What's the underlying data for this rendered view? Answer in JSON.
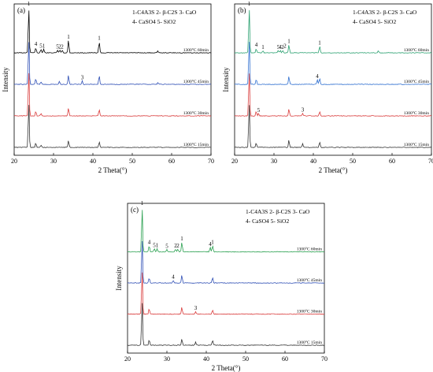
{
  "common": {
    "ylabel": "Intensity",
    "xlabel": "2 Theta(°)",
    "xlim": [
      20,
      70
    ],
    "xticks": [
      20,
      30,
      40,
      50,
      60,
      70
    ],
    "legend_lines": [
      [
        "1-C4A3S",
        "2- β-C2S",
        "3- CaO"
      ],
      [
        "4- CaSO4",
        "5- SiO2"
      ]
    ]
  },
  "chart_data": [
    {
      "type": "line",
      "panel_label": "(a)",
      "xlabel": "2 Theta(°)",
      "ylabel": "Intensity",
      "xlim": [
        20,
        70
      ],
      "series": [
        {
          "name": "1300°C 60min",
          "color": "#000000",
          "peaks": [
            [
              23.7,
              1.0
            ],
            [
              25.5,
              0.12
            ],
            [
              26.8,
              0.08
            ],
            [
              27.5,
              0.08
            ],
            [
              31.0,
              0.06
            ],
            [
              31.6,
              0.06
            ],
            [
              32.2,
              0.06
            ],
            [
              33.8,
              0.28
            ],
            [
              41.6,
              0.25
            ],
            [
              56.5,
              0.05
            ]
          ]
        },
        {
          "name": "1300°C 45min",
          "color": "#2f4fb5",
          "peaks": [
            [
              23.7,
              1.0
            ],
            [
              25.5,
              0.12
            ],
            [
              26.8,
              0.06
            ],
            [
              31.5,
              0.06
            ],
            [
              33.8,
              0.2
            ],
            [
              37.3,
              0.08
            ],
            [
              41.6,
              0.2
            ],
            [
              56.5,
              0.04
            ]
          ]
        },
        {
          "name": "1300°C 30min",
          "color": "#d93a3a",
          "peaks": [
            [
              23.7,
              1.0
            ],
            [
              25.5,
              0.1
            ],
            [
              26.8,
              0.05
            ],
            [
              33.8,
              0.18
            ],
            [
              41.6,
              0.14
            ]
          ]
        },
        {
          "name": "1300°C 15min",
          "color": "#333333",
          "peaks": [
            [
              23.7,
              1.0
            ],
            [
              25.5,
              0.1
            ],
            [
              26.8,
              0.05
            ],
            [
              33.8,
              0.16
            ],
            [
              41.6,
              0.12
            ]
          ]
        }
      ],
      "annotations": [
        {
          "text": "1",
          "x": 23.7,
          "trace": 0
        },
        {
          "text": "4",
          "x": 25.5,
          "trace": 0
        },
        {
          "text": "5",
          "x": 26.8,
          "trace": 0
        },
        {
          "text": "1",
          "x": 27.5,
          "trace": 0
        },
        {
          "text": "5",
          "x": 31.0,
          "trace": 0
        },
        {
          "text": "2",
          "x": 31.6,
          "trace": 0
        },
        {
          "text": "2",
          "x": 32.2,
          "trace": 0
        },
        {
          "text": "1",
          "x": 33.8,
          "trace": 0
        },
        {
          "text": "1",
          "x": 41.6,
          "trace": 0
        },
        {
          "text": "3",
          "x": 37.3,
          "trace": 1
        }
      ]
    },
    {
      "type": "line",
      "panel_label": "(b)",
      "xlabel": "2 Theta(°)",
      "ylabel": "Intensity",
      "xlim": [
        20,
        70
      ],
      "series": [
        {
          "name": "1300°C 60min",
          "color": "#2aa070",
          "peaks": [
            [
              23.7,
              1.0
            ],
            [
              25.5,
              0.1
            ],
            [
              27.2,
              0.05
            ],
            [
              31.1,
              0.05
            ],
            [
              31.6,
              0.05
            ],
            [
              32.2,
              0.05
            ],
            [
              33.8,
              0.18
            ],
            [
              41.6,
              0.15
            ],
            [
              56.5,
              0.04
            ]
          ]
        },
        {
          "name": "1300°C 45min",
          "color": "#2f6fd0",
          "peaks": [
            [
              23.7,
              1.0
            ],
            [
              25.5,
              0.12
            ],
            [
              33.8,
              0.18
            ],
            [
              41.0,
              0.1
            ],
            [
              41.6,
              0.14
            ]
          ]
        },
        {
          "name": "1300°C 30min",
          "color": "#d93a3a",
          "peaks": [
            [
              23.7,
              1.0
            ],
            [
              25.5,
              0.1
            ],
            [
              26.1,
              0.05
            ],
            [
              33.8,
              0.15
            ],
            [
              37.3,
              0.06
            ],
            [
              41.6,
              0.1
            ]
          ]
        },
        {
          "name": "1300°C 15min",
          "color": "#333333",
          "peaks": [
            [
              23.7,
              1.0
            ],
            [
              25.5,
              0.1
            ],
            [
              33.8,
              0.16
            ],
            [
              37.3,
              0.08
            ],
            [
              41.6,
              0.12
            ]
          ]
        }
      ],
      "annotations": [
        {
          "text": "1",
          "x": 23.7,
          "trace": 0
        },
        {
          "text": "4",
          "x": 25.5,
          "trace": 0
        },
        {
          "text": "1",
          "x": 27.2,
          "trace": 0
        },
        {
          "text": "5",
          "x": 31.1,
          "trace": 0
        },
        {
          "text": "4",
          "x": 31.6,
          "trace": 0
        },
        {
          "text": "2",
          "x": 32.2,
          "trace": 0
        },
        {
          "text": "2",
          "x": 32.8,
          "trace": 0
        },
        {
          "text": "1",
          "x": 33.8,
          "trace": 0
        },
        {
          "text": "1",
          "x": 41.6,
          "trace": 0
        },
        {
          "text": "4",
          "x": 41.0,
          "trace": 1
        },
        {
          "text": "5",
          "x": 26.1,
          "trace": 2
        },
        {
          "text": "3",
          "x": 37.3,
          "trace": 2
        }
      ]
    },
    {
      "type": "line",
      "panel_label": "(c)",
      "xlabel": "2 Theta(°)",
      "ylabel": "Intensity",
      "xlim": [
        20,
        70
      ],
      "series": [
        {
          "name": "1300°C 60min",
          "color": "#2aa050",
          "peaks": [
            [
              23.7,
              1.0
            ],
            [
              25.5,
              0.14
            ],
            [
              26.8,
              0.07
            ],
            [
              27.5,
              0.07
            ],
            [
              30.0,
              0.05
            ],
            [
              32.2,
              0.06
            ],
            [
              32.8,
              0.06
            ],
            [
              33.8,
              0.22
            ],
            [
              41.0,
              0.1
            ],
            [
              41.6,
              0.14
            ]
          ]
        },
        {
          "name": "1300°C 45min",
          "color": "#2f4fb5",
          "peaks": [
            [
              23.7,
              1.0
            ],
            [
              25.5,
              0.12
            ],
            [
              31.6,
              0.06
            ],
            [
              33.8,
              0.18
            ],
            [
              41.6,
              0.12
            ]
          ]
        },
        {
          "name": "1300°C 30min",
          "color": "#d93a3a",
          "peaks": [
            [
              23.7,
              1.0
            ],
            [
              25.5,
              0.12
            ],
            [
              33.8,
              0.16
            ],
            [
              37.3,
              0.06
            ],
            [
              41.6,
              0.1
            ]
          ]
        },
        {
          "name": "1300°C 15min",
          "color": "#333333",
          "peaks": [
            [
              23.7,
              1.0
            ],
            [
              25.5,
              0.12
            ],
            [
              33.8,
              0.14
            ],
            [
              37.3,
              0.07
            ],
            [
              41.6,
              0.11
            ]
          ]
        }
      ],
      "annotations": [
        {
          "text": "1",
          "x": 23.7,
          "trace": 0
        },
        {
          "text": "4",
          "x": 25.5,
          "trace": 0
        },
        {
          "text": "5",
          "x": 26.8,
          "trace": 0
        },
        {
          "text": "1",
          "x": 27.5,
          "trace": 0
        },
        {
          "text": "5",
          "x": 30.0,
          "trace": 0
        },
        {
          "text": "2",
          "x": 32.2,
          "trace": 0
        },
        {
          "text": "2",
          "x": 32.8,
          "trace": 0
        },
        {
          "text": "1",
          "x": 33.8,
          "trace": 0
        },
        {
          "text": "4",
          "x": 41.0,
          "trace": 0
        },
        {
          "text": "1",
          "x": 41.6,
          "trace": 0
        },
        {
          "text": "4",
          "x": 31.6,
          "trace": 1
        },
        {
          "text": "3",
          "x": 37.3,
          "trace": 2
        }
      ]
    }
  ]
}
